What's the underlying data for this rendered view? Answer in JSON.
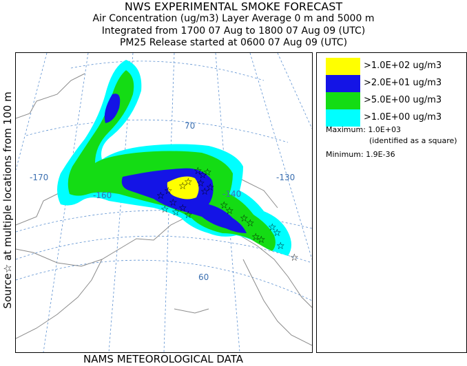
{
  "header": {
    "title": "NWS EXPERIMENTAL SMOKE FORECAST",
    "line2": "Air Concentration (ug/m3) Layer Average    0 m and  5000 m",
    "line3": "Integrated from 1700 07 Aug to 1800 07 Aug 09 (UTC)",
    "line4": "PM25 Release started at 0600 07 Aug 09 (UTC)"
  },
  "side_label": "Source☆ at multiple locations   from   100 m",
  "bottom_label": "NAMS METEOROLOGICAL DATA",
  "map": {
    "meridian_labels": [
      "-170",
      "-160",
      "-140",
      "-130"
    ],
    "parallel_labels": [
      "70",
      "60"
    ],
    "fire_source_symbol": "☆",
    "map_line_color": "#5a8fd0",
    "coast_color": "#8a8a8a"
  },
  "legend": {
    "items": [
      {
        "label": ">1.0E+02 ug/m3",
        "color": "#ffff00"
      },
      {
        "label": ">2.0E+01 ug/m3",
        "color": "#1414e6"
      },
      {
        "label": ">5.0E+00 ug/m3",
        "color": "#14dc14"
      },
      {
        "label": ">1.0E+00 ug/m3",
        "color": "#00ffff"
      }
    ],
    "maximum": "Maximum: 1.0E+03",
    "maximum_note": "(identified as a square)",
    "minimum": "Minimum: 1.9E-36"
  }
}
